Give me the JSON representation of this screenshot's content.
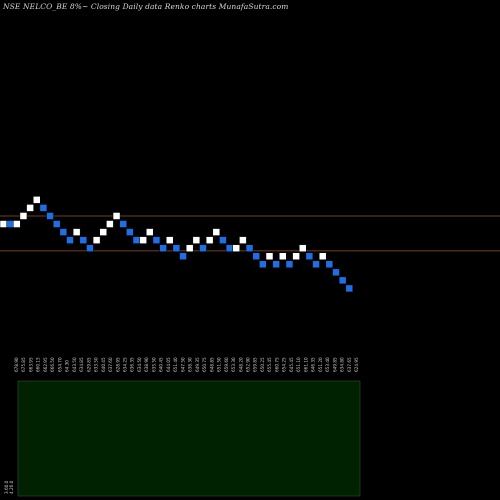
{
  "chart_data": {
    "type": "renko",
    "title": "NSE NELCO_BE 8%~  Closing Daily data  Renko  charts MunafaSutra.com",
    "price_range": [
      578,
      660
    ],
    "reference_lines": [
      {
        "price": 641,
        "color": "#a0522d"
      },
      {
        "price": 628,
        "color": "#a0522d"
      }
    ],
    "bricks": [
      {
        "price": 638,
        "color": "up"
      },
      {
        "price": 638,
        "color": "down"
      },
      {
        "price": 638,
        "color": "up"
      },
      {
        "price": 641,
        "color": "up"
      },
      {
        "price": 644,
        "color": "up"
      },
      {
        "price": 647,
        "color": "up"
      },
      {
        "price": 644,
        "color": "down"
      },
      {
        "price": 641,
        "color": "down"
      },
      {
        "price": 638,
        "color": "down"
      },
      {
        "price": 635,
        "color": "down"
      },
      {
        "price": 632,
        "color": "down"
      },
      {
        "price": 635,
        "color": "up"
      },
      {
        "price": 632,
        "color": "down"
      },
      {
        "price": 629,
        "color": "down"
      },
      {
        "price": 632,
        "color": "up"
      },
      {
        "price": 635,
        "color": "up"
      },
      {
        "price": 638,
        "color": "up"
      },
      {
        "price": 641,
        "color": "up"
      },
      {
        "price": 638,
        "color": "down"
      },
      {
        "price": 635,
        "color": "down"
      },
      {
        "price": 632,
        "color": "down"
      },
      {
        "price": 632,
        "color": "up"
      },
      {
        "price": 635,
        "color": "up"
      },
      {
        "price": 632,
        "color": "down"
      },
      {
        "price": 629,
        "color": "down"
      },
      {
        "price": 632,
        "color": "up"
      },
      {
        "price": 629,
        "color": "down"
      },
      {
        "price": 626,
        "color": "down"
      },
      {
        "price": 629,
        "color": "up"
      },
      {
        "price": 632,
        "color": "up"
      },
      {
        "price": 629,
        "color": "down"
      },
      {
        "price": 632,
        "color": "up"
      },
      {
        "price": 635,
        "color": "up"
      },
      {
        "price": 632,
        "color": "down"
      },
      {
        "price": 629,
        "color": "down"
      },
      {
        "price": 629,
        "color": "up"
      },
      {
        "price": 632,
        "color": "up"
      },
      {
        "price": 629,
        "color": "down"
      },
      {
        "price": 626,
        "color": "down"
      },
      {
        "price": 623,
        "color": "down"
      },
      {
        "price": 626,
        "color": "up"
      },
      {
        "price": 623,
        "color": "down"
      },
      {
        "price": 626,
        "color": "up"
      },
      {
        "price": 623,
        "color": "down"
      },
      {
        "price": 626,
        "color": "up"
      },
      {
        "price": 629,
        "color": "up"
      },
      {
        "price": 626,
        "color": "down"
      },
      {
        "price": 623,
        "color": "down"
      },
      {
        "price": 626,
        "color": "up"
      },
      {
        "price": 623,
        "color": "down"
      },
      {
        "price": 620,
        "color": "down"
      },
      {
        "price": 617,
        "color": "down"
      },
      {
        "price": 614,
        "color": "down"
      }
    ],
    "x_tick_labels": [
      "678.90",
      "675.85",
      "663.95",
      "660.15",
      "662.95",
      "666.50",
      "654.70",
      "64.30",
      "643.50",
      "634.85",
      "629.85",
      "633.50",
      "640.45",
      "637.60",
      "628.95",
      "634.25",
      "636.35",
      "634.50",
      "638.90",
      "635.50",
      "640.45",
      "644.05",
      "651.40",
      "647.50",
      "638.30",
      "649.35",
      "650.75",
      "648.85",
      "651.50",
      "659.60",
      "653.30",
      "648.20",
      "652.90",
      "659.85",
      "650.25",
      "655.45",
      "660.75",
      "654.25",
      "645.45",
      "651.10",
      "661.10",
      "646.35",
      "651.20",
      "653.40",
      "649.85",
      "634.80",
      "637.65",
      "624.95"
    ],
    "left_labels": [
      "3.60.0",
      "4.26.0"
    ],
    "volume": {
      "panel_color": "#002200",
      "values": []
    }
  }
}
